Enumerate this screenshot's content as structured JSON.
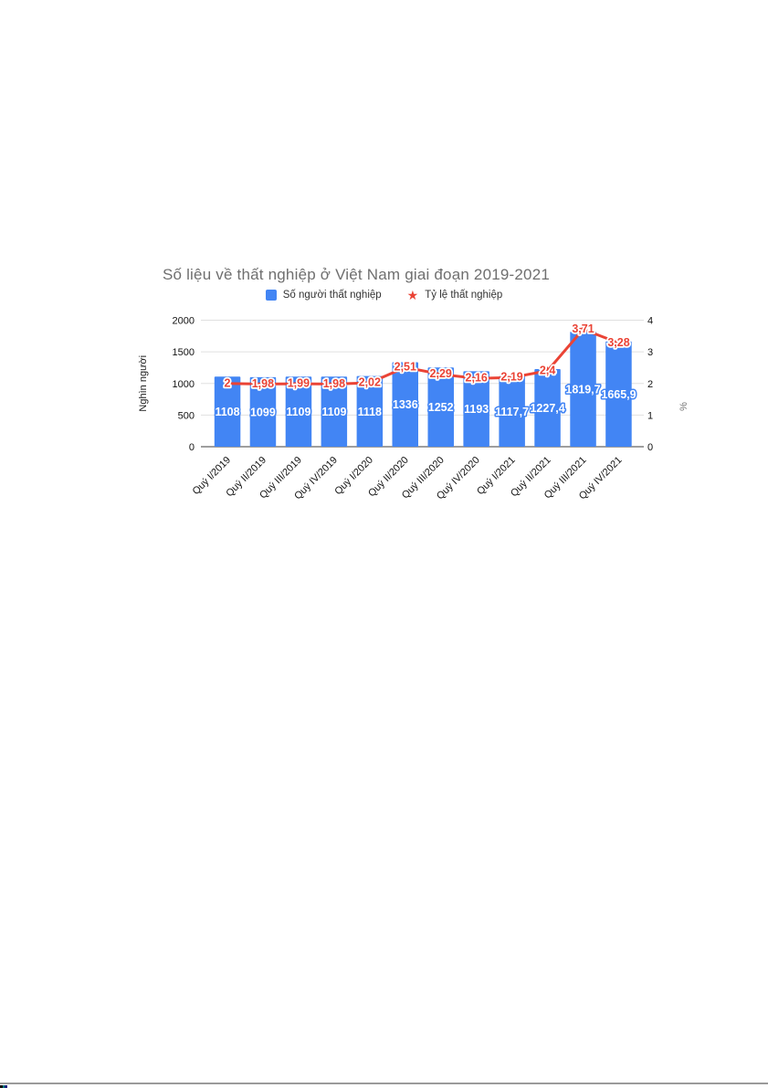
{
  "chart": {
    "title": "Số liệu về thất nghiệp ở Việt Nam giai đoạn 2019-2021",
    "legend": [
      {
        "label": "Số người thất nghiệp",
        "marker": "square",
        "glyph": "",
        "color": "#4285f4"
      },
      {
        "label": "Tỷ lệ thất nghiệp",
        "marker": "star",
        "glyph": "★",
        "color": "#ea4335"
      }
    ]
  },
  "chart_data": {
    "type": "bar",
    "subtype": "combo_bar_line",
    "title": "Số liệu về thất nghiệp ở Việt Nam giai đoạn 2019-2021",
    "categories": [
      "Quý I/2019",
      "Quý II/2019",
      "Quý III/2019",
      "Quý IV/2019",
      "Quý I/2020",
      "Quý II/2020",
      "Quý III/2020",
      "Quý IV/2020",
      "Quý I/2021",
      "Quý II/2021",
      "Quý III/2021",
      "Quý IV/2021"
    ],
    "series": [
      {
        "name": "Số người thất nghiệp",
        "render": "bar",
        "axis": "left",
        "color": "#4285f4",
        "values": [
          1108,
          1099,
          1109,
          1109,
          1118,
          1336,
          1252,
          1193,
          1117.7,
          1227.4,
          1819.7,
          1665.9
        ],
        "labels": [
          "1108",
          "1099",
          "1109",
          "1109",
          "1118",
          "1336",
          "1252",
          "1193",
          "1117,7",
          "1227,4",
          "1819,7",
          "1665,9"
        ]
      },
      {
        "name": "Tỷ lệ thất nghiệp",
        "render": "line",
        "axis": "right",
        "color": "#ea4335",
        "marker": "star",
        "values": [
          2,
          1.98,
          1.99,
          1.98,
          2.02,
          2.51,
          2.29,
          2.16,
          2.19,
          2.4,
          3.71,
          3.28
        ],
        "labels": [
          "2",
          "1,98",
          "1,99",
          "1,98",
          "2,02",
          "2,51",
          "2,29",
          "2,16",
          "2,19",
          "2,4",
          "3,71",
          "3,28"
        ]
      }
    ],
    "left_axis": {
      "title": "Nghìn người",
      "ticks": [
        "0",
        "500",
        "1000",
        "1500",
        "2000"
      ],
      "range": [
        0,
        2000
      ]
    },
    "right_axis": {
      "title": "%",
      "ticks": [
        "0",
        "1",
        "2",
        "3",
        "4"
      ],
      "range": [
        0,
        4
      ]
    },
    "grid": true,
    "legend_position": "top"
  },
  "colors": {
    "bar": "#4285f4",
    "line": "#ea4335",
    "gridline": "#e0e0e0",
    "baseline": "#9e9e9e",
    "tick_text": "#111111",
    "left_axis_title": "#1a1a1a",
    "right_axis_title": "#757575",
    "page_background": "#ffffff",
    "divider": "#9a9a9a"
  }
}
